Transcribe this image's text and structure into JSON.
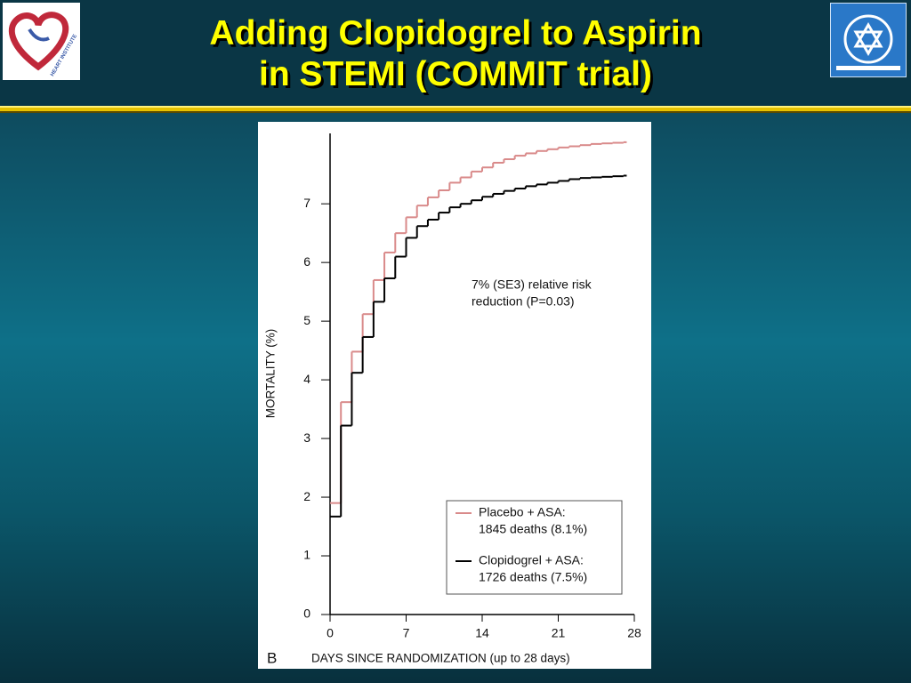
{
  "slide": {
    "title": [
      "Adding Clopidogrel to Aspirin",
      "in STEMI (COMMIT trial)"
    ],
    "logo_text": "HEART INSTITUTE"
  },
  "chart_data": {
    "type": "line",
    "step": "post",
    "panel_label": "B",
    "x_label": "DAYS SINCE RANDOMIZATION (up to 28 days)",
    "y_label": "MORTALITY (%)",
    "annotation": [
      "7% (SE3) relative risk",
      "reduction (P=0.03)"
    ],
    "x": [
      0,
      1,
      2,
      3,
      4,
      5,
      6,
      7,
      8,
      9,
      10,
      11,
      12,
      13,
      14,
      15,
      16,
      17,
      18,
      19,
      20,
      21,
      22,
      23,
      24,
      25,
      26,
      27
    ],
    "series": [
      {
        "name": "Placebo + ASA:",
        "legend_detail": "1845 deaths (8.1%)",
        "color": "#d98a8a",
        "values": [
          1.9,
          3.62,
          4.48,
          5.12,
          5.7,
          6.17,
          6.5,
          6.77,
          6.97,
          7.11,
          7.23,
          7.36,
          7.45,
          7.55,
          7.62,
          7.7,
          7.76,
          7.82,
          7.86,
          7.9,
          7.93,
          7.96,
          7.98,
          8.0,
          8.02,
          8.03,
          8.04,
          8.05
        ]
      },
      {
        "name": "Clopidogrel + ASA:",
        "legend_detail": "1726 deaths (7.5%)",
        "color": "#000000",
        "values": [
          1.67,
          3.22,
          4.12,
          4.73,
          5.33,
          5.73,
          6.1,
          6.42,
          6.62,
          6.73,
          6.85,
          6.94,
          7.0,
          7.06,
          7.12,
          7.17,
          7.22,
          7.26,
          7.3,
          7.33,
          7.36,
          7.39,
          7.42,
          7.44,
          7.45,
          7.46,
          7.47,
          7.48
        ]
      }
    ],
    "xlim": [
      0,
      28
    ],
    "xticks": [
      0,
      7,
      14,
      21,
      28
    ],
    "ylim": [
      0,
      8.2
    ],
    "yticks": [
      0,
      1,
      2,
      3,
      4,
      5,
      6,
      7
    ],
    "grid": false
  }
}
